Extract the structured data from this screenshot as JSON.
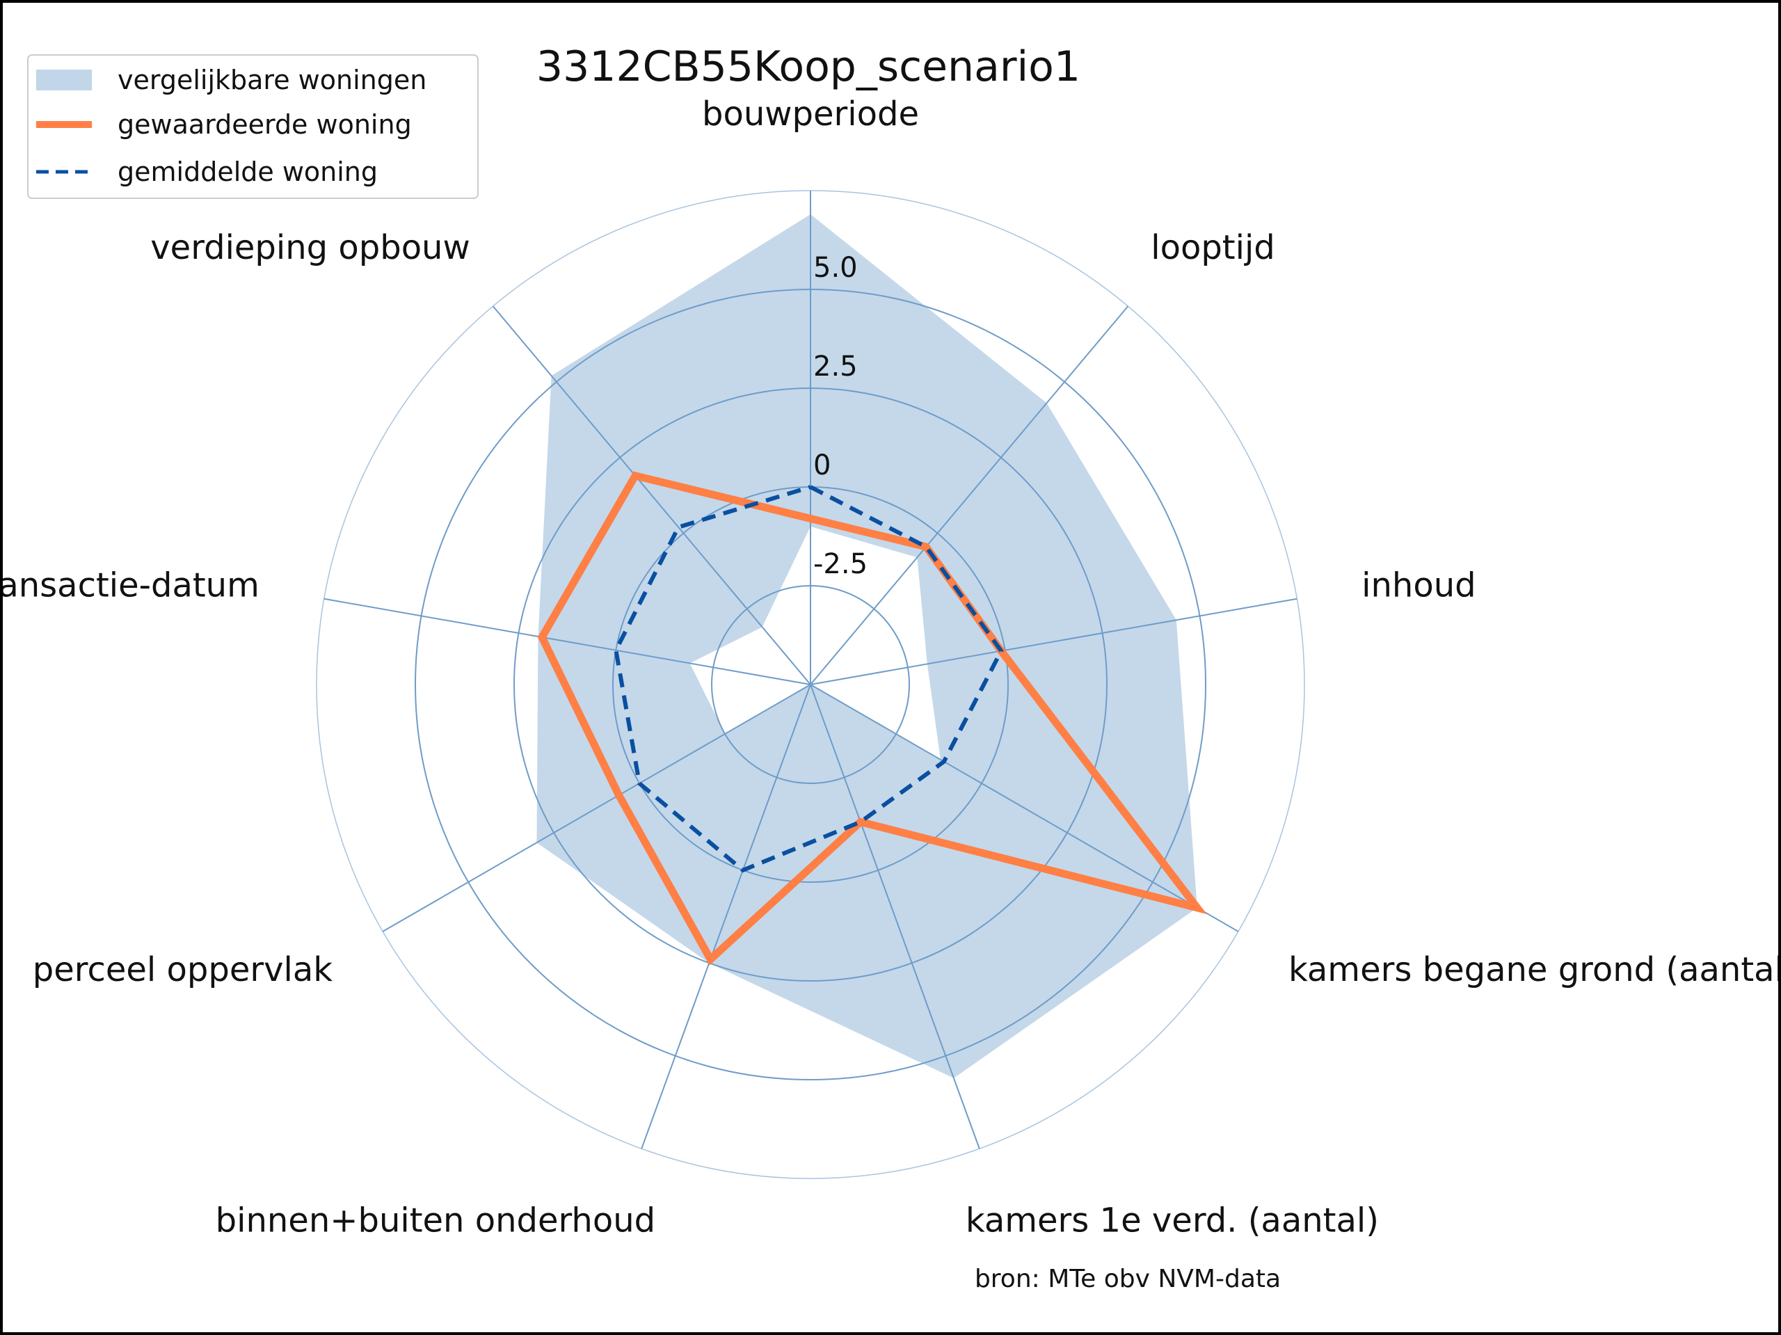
{
  "chart_data": {
    "type": "radar",
    "title": "3312CB55Koop_scenario1",
    "categories": [
      "bouwperiode",
      "looptijd",
      "inhoud",
      "kamers begane grond (aantal)",
      "kamers 1e verd. (aantal)",
      "binnen+buiten onderhoud",
      "perceel oppervlak",
      "transactie-datum",
      "verdieping opbouw"
    ],
    "rlim": [
      -5,
      7.5
    ],
    "r_ticks": [
      -2.5,
      0,
      2.5,
      5.0
    ],
    "r_tick_labels": [
      "-2.5",
      "0",
      "2.5",
      "5.0"
    ],
    "grid": true,
    "legend_position": "top-left",
    "band": {
      "name": "vergelijkbare woningen",
      "color": "#c1d6e9",
      "upper": [
        6.9,
        4.3,
        4.4,
        6.3,
        5.6,
        2.5,
        3.0,
        2.0,
        5.2
      ],
      "lower": [
        -1.0,
        -0.8,
        -2.0,
        -1.2,
        -5.0,
        -5.0,
        -2.5,
        -1.9,
        -3.1
      ]
    },
    "series": [
      {
        "name": "gewaardeerde woning",
        "color": "#ff7f45",
        "style": "solid",
        "values": [
          -0.8,
          -0.45,
          -0.1,
          6.3,
          -1.3,
          2.4,
          0.6,
          1.9,
          1.9
        ]
      },
      {
        "name": "gemiddelde woning",
        "color": "#0a4fa0",
        "style": "dashed",
        "values": [
          0.0,
          -0.45,
          -0.1,
          -1.1,
          -1.3,
          0.0,
          0.0,
          0.0,
          0.2
        ]
      }
    ],
    "grid_color": "#6f9cc8",
    "source_note": "bron: MTe obv NVM-data"
  }
}
